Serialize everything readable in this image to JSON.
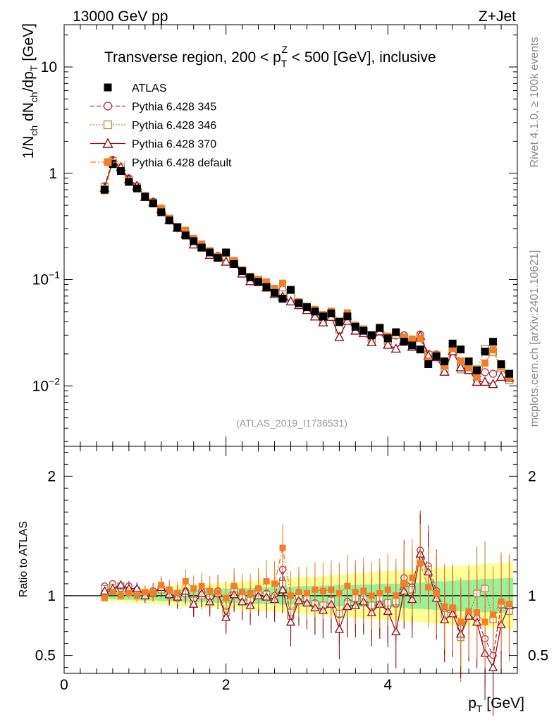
{
  "header": {
    "energy_label": "13000 GeV pp",
    "process_label": "Z+Jet",
    "side_label_top": "Rivet 4.1.0, ≥ 100k events",
    "side_label_bottom": "mcplots.cern.ch [arXiv:2401.10621]",
    "watermark": "(ATLAS_2019_I1736531)"
  },
  "chart_data": [
    {
      "type": "scatter",
      "panel": "main",
      "title": "Transverse region, 200 < p_T^Z < 500 [GeV], inclusive",
      "title_parts": {
        "pre": "Transverse region, 200 < p",
        "sub": "T",
        "sup": "Z",
        "post": " < 500 [GeV], inclusive"
      },
      "ylabel": "1/N_ch dN_ch/dp_T [GeV]",
      "ylabel_parts": {
        "a": "1/N",
        "a_sub": "ch",
        "b": " dN",
        "b_sub": "ch",
        "c": "/dp",
        "c_sub": "T",
        "d": " [GeV]"
      },
      "yscale": "log",
      "ylim": [
        0.0027,
        25
      ],
      "xlim": [
        0,
        5.6
      ],
      "y_ticks": [
        {
          "value": 10,
          "label": "10"
        },
        {
          "value": 1,
          "label": "1"
        },
        {
          "value": 0.1,
          "label": "10",
          "exp": "−1"
        },
        {
          "value": 0.01,
          "label": "10",
          "exp": "−2"
        }
      ],
      "legend_position": "top-left",
      "legend": [
        {
          "name": "ATLAS",
          "color": "#000000",
          "marker": "filled-square",
          "line": "none"
        },
        {
          "name": "Pythia 6.428 345",
          "color": "#b03050",
          "marker": "open-circle",
          "line": "dashed"
        },
        {
          "name": "Pythia 6.428 346",
          "color": "#a88d45",
          "marker": "open-square",
          "line": "dotted"
        },
        {
          "name": "Pythia 6.428 370",
          "color": "#8c1020",
          "marker": "open-triangle",
          "line": "solid"
        },
        {
          "name": "Pythia 6.428 default",
          "color": "#f47e28",
          "marker": "filled-square",
          "line": "dashdot"
        }
      ],
      "x": [
        0.5,
        0.6,
        0.7,
        0.8,
        0.9,
        1.0,
        1.1,
        1.2,
        1.3,
        1.4,
        1.5,
        1.6,
        1.7,
        1.8,
        1.9,
        2.0,
        2.1,
        2.2,
        2.3,
        2.4,
        2.5,
        2.6,
        2.7,
        2.8,
        2.9,
        3.0,
        3.1,
        3.2,
        3.3,
        3.4,
        3.5,
        3.6,
        3.7,
        3.8,
        3.9,
        4.0,
        4.1,
        4.2,
        4.3,
        4.4,
        4.5,
        4.6,
        4.7,
        4.8,
        4.9,
        5.0,
        5.1,
        5.2,
        5.3,
        5.4,
        5.5
      ],
      "atlas": [
        0.7,
        1.22,
        1.05,
        0.83,
        0.72,
        0.6,
        0.52,
        0.43,
        0.36,
        0.31,
        0.26,
        0.23,
        0.2,
        0.18,
        0.16,
        0.18,
        0.14,
        0.12,
        0.105,
        0.095,
        0.085,
        0.075,
        0.066,
        0.08,
        0.06,
        0.055,
        0.05,
        0.045,
        0.048,
        0.04,
        0.045,
        0.036,
        0.033,
        0.03,
        0.035,
        0.028,
        0.032,
        0.026,
        0.024,
        0.022,
        0.016,
        0.019,
        0.017,
        0.025,
        0.022,
        0.017,
        0.014,
        0.021,
        0.026,
        0.016,
        0.013
      ]
    },
    {
      "type": "scatter",
      "panel": "ratio",
      "ylabel": "Ratio to ATLAS",
      "xlabel": "p_T [GeV]",
      "xlabel_parts": {
        "a": "p",
        "a_sub": "T",
        "b": " [GeV]"
      },
      "ylim": [
        0.35,
        2.25
      ],
      "xlim": [
        0,
        5.6
      ],
      "y_ticks": [
        {
          "value": 0.5,
          "label": "0.5"
        },
        {
          "value": 1,
          "label": "1"
        },
        {
          "value": 2,
          "label": "2"
        }
      ],
      "x_ticks": [
        {
          "value": 0,
          "label": "0"
        },
        {
          "value": 2,
          "label": "2"
        },
        {
          "value": 4,
          "label": "4"
        }
      ],
      "series": [
        {
          "name": "Pythia 6.428 345",
          "color": "#b03050",
          "marker": "open-circle",
          "dash": "6,3",
          "values": [
            1.08,
            1.1,
            1.06,
            1.08,
            1.05,
            1.02,
            1.04,
            1.07,
            1.0,
            0.98,
            1.04,
            0.94,
            1.03,
            0.97,
            1.04,
            0.84,
            1.02,
            0.98,
            0.95,
            1.03,
            1.02,
            1.0,
            1.22,
            0.82,
            0.98,
            0.99,
            0.94,
            0.92,
            0.97,
            0.84,
            0.95,
            0.97,
            0.99,
            0.9,
            0.94,
            0.91,
            0.93,
            1.15,
            1.07,
            1.38,
            1.25,
            1.04,
            0.86,
            0.89,
            0.73,
            0.83,
            0.81,
            0.64,
            0.5,
            0.92,
            0.9
          ]
        },
        {
          "name": "Pythia 6.428 346",
          "color": "#a88d45",
          "marker": "open-square",
          "dash": "2,2",
          "values": [
            1.06,
            1.07,
            1.08,
            1.04,
            1.03,
            1.02,
            1.02,
            1.05,
            1.03,
            1.0,
            1.02,
            0.96,
            1.0,
            0.98,
            1.02,
            0.86,
            1.06,
            0.99,
            0.96,
            1.04,
            1.01,
            0.98,
            1.1,
            0.86,
            1.0,
            0.97,
            0.93,
            0.92,
            0.96,
            0.85,
            0.93,
            0.98,
            0.97,
            0.92,
            0.98,
            0.94,
            0.95,
            1.1,
            1.05,
            1.3,
            1.22,
            1.02,
            0.84,
            0.88,
            0.65,
            0.84,
            1.02,
            1.06,
            0.8,
            0.93,
            0.87
          ]
        },
        {
          "name": "Pythia 6.428 370",
          "color": "#8c1020",
          "marker": "open-triangle",
          "dash": "",
          "values": [
            1.04,
            1.06,
            1.09,
            1.06,
            1.06,
            1.0,
            1.02,
            1.07,
            1.01,
            0.99,
            1.04,
            0.93,
            1.02,
            0.95,
            1.02,
            0.82,
            1.01,
            0.95,
            0.92,
            1.0,
            0.99,
            0.97,
            1.05,
            0.78,
            0.96,
            0.94,
            0.9,
            0.88,
            0.93,
            0.72,
            0.91,
            0.92,
            0.95,
            0.86,
            0.93,
            0.87,
            0.7,
            1.04,
            0.97,
            1.35,
            1.2,
            0.98,
            0.8,
            0.85,
            0.68,
            0.83,
            0.78,
            0.52,
            0.4,
            0.76,
            0.92
          ]
        },
        {
          "name": "Pythia 6.428 default",
          "color": "#f47e28",
          "marker": "filled-square",
          "dash": "8,3,2,3",
          "values": [
            0.98,
            1.03,
            1.0,
            1.02,
            1.0,
            1.03,
            1.02,
            1.09,
            1.05,
            1.02,
            1.12,
            1.06,
            1.08,
            1.04,
            1.03,
            0.98,
            1.08,
            1.03,
            1.02,
            1.06,
            1.12,
            1.1,
            1.4,
            1.0,
            1.03,
            1.02,
            1.05,
            1.04,
            1.05,
            1.02,
            1.08,
            1.03,
            1.04,
            1.0,
            1.02,
            1.05,
            1.0,
            1.1,
            1.15,
            1.27,
            1.07,
            1.02,
            0.91,
            0.9,
            0.78,
            0.87,
            0.86,
            0.78,
            0.84,
            0.95,
            0.93
          ]
        }
      ],
      "bands": {
        "green_halfwidth": [
          0.03,
          0.03,
          0.035,
          0.035,
          0.04,
          0.04,
          0.04,
          0.045,
          0.045,
          0.05,
          0.05,
          0.05,
          0.055,
          0.055,
          0.06,
          0.06,
          0.06,
          0.065,
          0.065,
          0.07,
          0.07,
          0.07,
          0.075,
          0.075,
          0.08,
          0.08,
          0.08,
          0.085,
          0.085,
          0.09,
          0.09,
          0.09,
          0.095,
          0.095,
          0.1,
          0.1,
          0.1,
          0.105,
          0.11,
          0.11,
          0.115,
          0.12,
          0.12,
          0.125,
          0.13,
          0.13,
          0.135,
          0.14,
          0.14,
          0.145,
          0.15
        ],
        "yellow_halfwidth": [
          0.05,
          0.05,
          0.055,
          0.06,
          0.06,
          0.065,
          0.07,
          0.075,
          0.08,
          0.085,
          0.09,
          0.09,
          0.095,
          0.1,
          0.105,
          0.11,
          0.115,
          0.12,
          0.125,
          0.13,
          0.13,
          0.135,
          0.14,
          0.145,
          0.15,
          0.155,
          0.16,
          0.165,
          0.17,
          0.175,
          0.18,
          0.185,
          0.19,
          0.195,
          0.2,
          0.205,
          0.21,
          0.215,
          0.22,
          0.225,
          0.23,
          0.235,
          0.24,
          0.245,
          0.25,
          0.255,
          0.26,
          0.265,
          0.27,
          0.275,
          0.28
        ]
      }
    }
  ]
}
